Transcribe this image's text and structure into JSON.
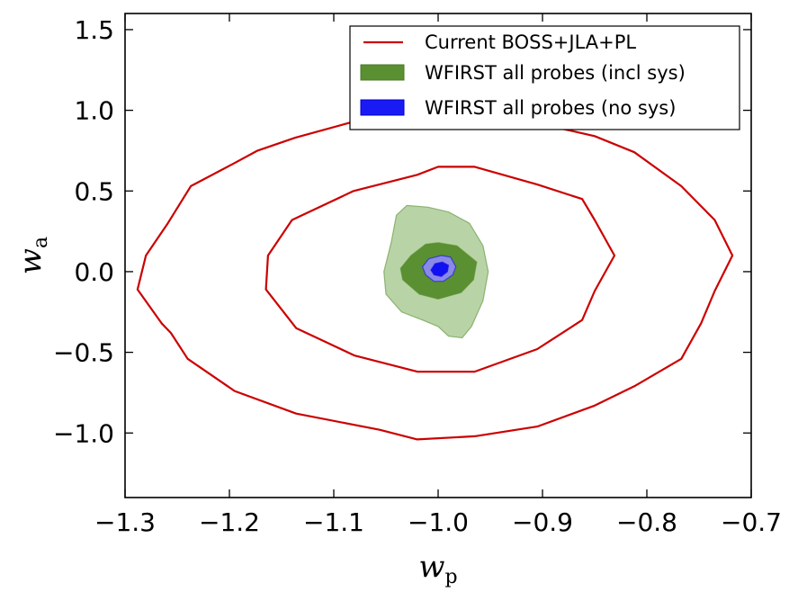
{
  "chart_data": {
    "type": "contour",
    "xlabel": "w",
    "xlabel_sub": "p",
    "ylabel": "w",
    "ylabel_sub": "a",
    "xlim": [
      -1.3,
      -0.7
    ],
    "ylim": [
      -1.4,
      1.6
    ],
    "xticks": [
      -1.3,
      -1.2,
      -1.1,
      -1.0,
      -0.9,
      -0.8,
      -0.7
    ],
    "xtick_labels": [
      "−1.3",
      "−1.2",
      "−1.1",
      "−1.0",
      "−0.9",
      "−0.8",
      "−0.7"
    ],
    "yticks": [
      -1.0,
      -0.5,
      0.0,
      0.5,
      1.0,
      1.5
    ],
    "ytick_labels": [
      "−1.0",
      "−0.5",
      "0.0",
      "0.5",
      "1.0",
      "1.5"
    ],
    "grid": false,
    "legend_position": "top-right",
    "series": [
      {
        "name": "Current BOSS+JLA+PL",
        "style": "line",
        "color": "#cc0000",
        "contours": [
          {
            "level": "inner",
            "points": [
              [
                -1.0,
                0.65
              ],
              [
                -0.965,
                0.65
              ],
              [
                -0.905,
                0.54
              ],
              [
                -0.862,
                0.45
              ],
              [
                -0.85,
                0.32
              ],
              [
                -0.831,
                0.1
              ],
              [
                -0.85,
                -0.12
              ],
              [
                -0.862,
                -0.3
              ],
              [
                -0.905,
                -0.48
              ],
              [
                -0.965,
                -0.62
              ],
              [
                -1.02,
                -0.62
              ],
              [
                -1.08,
                -0.52
              ],
              [
                -1.136,
                -0.35
              ],
              [
                -1.165,
                -0.11
              ],
              [
                -1.163,
                0.1
              ],
              [
                -1.14,
                0.32
              ],
              [
                -1.081,
                0.5
              ],
              [
                -1.02,
                0.6
              ],
              [
                -1.0,
                0.65
              ]
            ]
          },
          {
            "level": "outer",
            "points": [
              [
                -0.97,
                1.07
              ],
              [
                -0.905,
                0.92
              ],
              [
                -0.85,
                0.84
              ],
              [
                -0.812,
                0.74
              ],
              [
                -0.767,
                0.53
              ],
              [
                -0.735,
                0.32
              ],
              [
                -0.718,
                0.1
              ],
              [
                -0.735,
                -0.12
              ],
              [
                -0.748,
                -0.32
              ],
              [
                -0.767,
                -0.54
              ],
              [
                -0.812,
                -0.71
              ],
              [
                -0.85,
                -0.83
              ],
              [
                -0.905,
                -0.96
              ],
              [
                -0.965,
                -1.02
              ],
              [
                -1.02,
                -1.04
              ],
              [
                -1.056,
                -0.98
              ],
              [
                -1.136,
                -0.88
              ],
              [
                -1.195,
                -0.74
              ],
              [
                -1.24,
                -0.54
              ],
              [
                -1.256,
                -0.38
              ],
              [
                -1.265,
                -0.32
              ],
              [
                -1.288,
                -0.11
              ],
              [
                -1.28,
                0.1
              ],
              [
                -1.259,
                0.3
              ],
              [
                -1.237,
                0.53
              ],
              [
                -1.196,
                0.67
              ],
              [
                -1.173,
                0.75
              ],
              [
                -1.137,
                0.83
              ],
              [
                -1.081,
                0.93
              ],
              [
                -1.04,
                0.99
              ],
              [
                -0.97,
                1.07
              ]
            ]
          }
        ]
      },
      {
        "name": "WFIRST all probes (incl sys)",
        "style": "fill",
        "color": "#5a8f32",
        "light_color": "#b8d4a6",
        "contours": [
          {
            "level": "outer",
            "points": [
              [
                -1.03,
                0.41
              ],
              [
                -1.01,
                0.4
              ],
              [
                -0.99,
                0.37
              ],
              [
                -0.97,
                0.3
              ],
              [
                -0.957,
                0.16
              ],
              [
                -0.952,
                0.0
              ],
              [
                -0.957,
                -0.18
              ],
              [
                -0.968,
                -0.34
              ],
              [
                -0.977,
                -0.41
              ],
              [
                -0.99,
                -0.4
              ],
              [
                -1.0,
                -0.34
              ],
              [
                -1.015,
                -0.3
              ],
              [
                -1.035,
                -0.25
              ],
              [
                -1.05,
                -0.14
              ],
              [
                -1.052,
                0.0
              ],
              [
                -1.045,
                0.18
              ],
              [
                -1.04,
                0.35
              ],
              [
                -1.03,
                0.41
              ]
            ]
          },
          {
            "level": "inner",
            "points": [
              [
                -1.0,
                0.18
              ],
              [
                -0.982,
                0.16
              ],
              [
                -0.963,
                0.06
              ],
              [
                -0.966,
                -0.05
              ],
              [
                -0.978,
                -0.13
              ],
              [
                -1.0,
                -0.17
              ],
              [
                -1.018,
                -0.14
              ],
              [
                -1.034,
                -0.05
              ],
              [
                -1.036,
                0.02
              ],
              [
                -1.026,
                0.1
              ],
              [
                -1.012,
                0.17
              ],
              [
                -1.0,
                0.18
              ]
            ]
          }
        ]
      },
      {
        "name": "WFIRST all probes (no sys)",
        "style": "fill",
        "color": "#1010f0",
        "light_color": "#8a8ae6",
        "contours": [
          {
            "level": "outer",
            "points": [
              [
                -0.997,
                0.1
              ],
              [
                -0.988,
                0.09
              ],
              [
                -0.983,
                0.03
              ],
              [
                -0.986,
                -0.02
              ],
              [
                -0.995,
                -0.06
              ],
              [
                -1.004,
                -0.06
              ],
              [
                -1.012,
                -0.02
              ],
              [
                -1.015,
                0.03
              ],
              [
                -1.009,
                0.08
              ],
              [
                -0.997,
                0.1
              ]
            ]
          },
          {
            "level": "inner",
            "points": [
              [
                -0.996,
                0.06
              ],
              [
                -0.99,
                0.04
              ],
              [
                -0.991,
                0.0
              ],
              [
                -0.997,
                -0.03
              ],
              [
                -1.004,
                -0.02
              ],
              [
                -1.007,
                0.01
              ],
              [
                -1.003,
                0.05
              ],
              [
                -0.996,
                0.06
              ]
            ]
          }
        ]
      }
    ]
  }
}
